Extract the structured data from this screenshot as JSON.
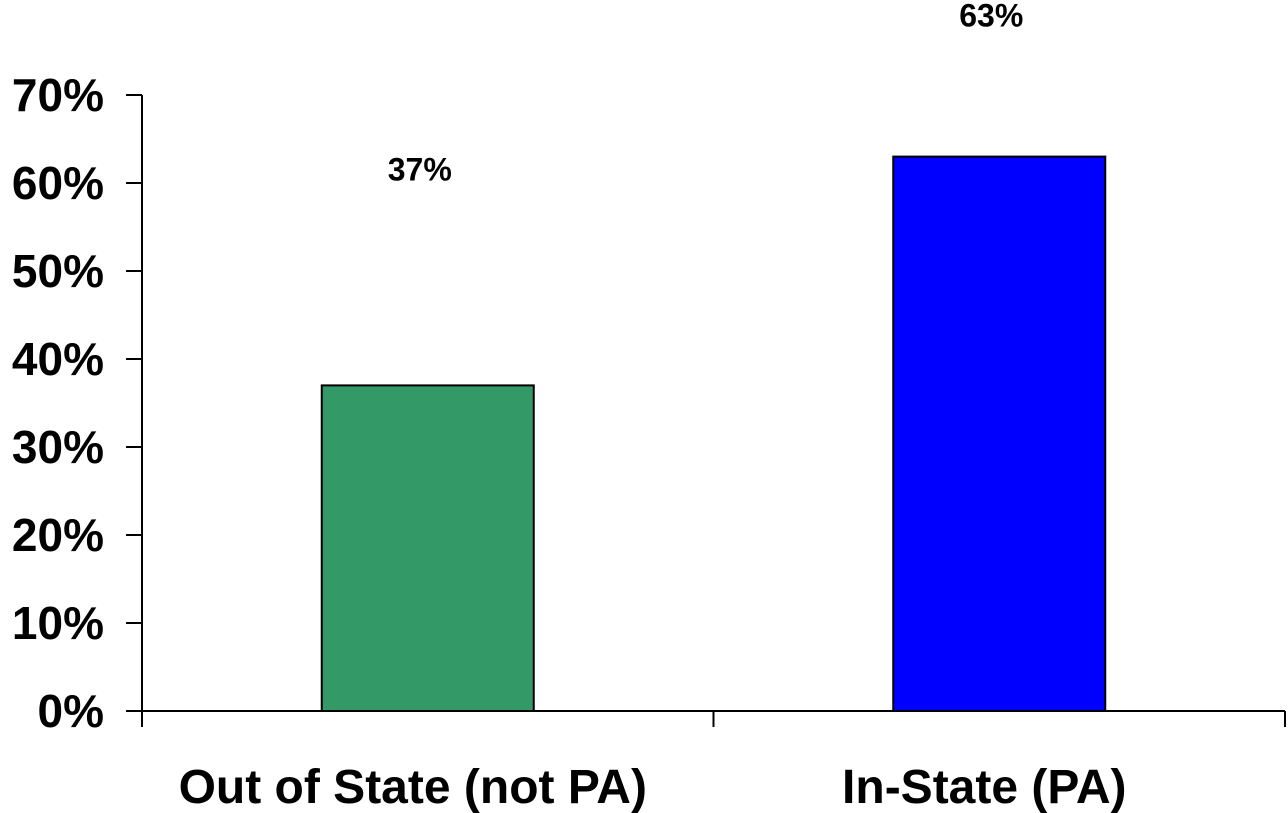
{
  "chart_data": {
    "type": "bar",
    "title": "",
    "xlabel": "",
    "ylabel": "",
    "categories": [
      "Out of State (not PA)",
      "In-State (PA)"
    ],
    "values": [
      37,
      63
    ],
    "data_labels": [
      "37%",
      "63%"
    ],
    "bar_colors": [
      "#339966",
      "#0000FF"
    ],
    "ylim": [
      0,
      70
    ],
    "yticks": [
      0,
      10,
      20,
      30,
      40,
      50,
      60,
      70
    ],
    "ytick_labels": [
      "0%",
      "10%",
      "20%",
      "30%",
      "40%",
      "50%",
      "60%",
      "70%"
    ],
    "grid": false,
    "legend": "none"
  }
}
